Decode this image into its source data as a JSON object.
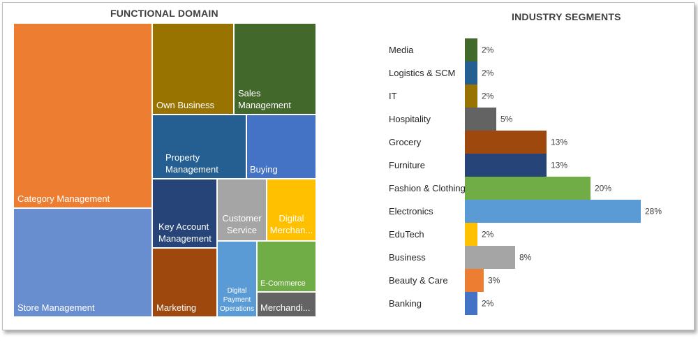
{
  "chart_data": [
    {
      "type": "treemap",
      "title": "FUNCTIONAL DOMAIN",
      "items": [
        {
          "name": "Category Management",
          "color": "#ED7D31"
        },
        {
          "name": "Store Management",
          "color": "#698ED0"
        },
        {
          "name": "Own Business",
          "color": "#997300"
        },
        {
          "name": "Sales Management",
          "color": "#43682B"
        },
        {
          "name": "Property\nManagement",
          "color": "#255E91"
        },
        {
          "name": "Buying",
          "color": "#4472C4"
        },
        {
          "name": "Key Account\nManagement",
          "color": "#264478"
        },
        {
          "name": "Customer\nService",
          "color": "#A5A5A5"
        },
        {
          "name": "Digital\nMerchan...",
          "color": "#FFC000"
        },
        {
          "name": "Marketing",
          "color": "#9E480E"
        },
        {
          "name": "Digital\nPayment\nOperations",
          "color": "#5B9BD5"
        },
        {
          "name": "E-Commerce",
          "color": "#70AD47"
        },
        {
          "name": "Merchandi...",
          "color": "#636363"
        }
      ]
    },
    {
      "type": "bar",
      "orientation": "horizontal",
      "title": "INDUSTRY SEGMENTS",
      "categories": [
        "Media",
        "Logistics & SCM",
        "IT",
        "Hospitality",
        "Grocery",
        "Furniture",
        "Fashion & Clothing",
        "Electronics",
        "EduTech",
        "Business",
        "Beauty & Care",
        "Banking"
      ],
      "values": [
        2,
        2,
        2,
        5,
        13,
        13,
        20,
        28,
        2,
        8,
        3,
        2
      ],
      "value_labels": [
        "2%",
        "2%",
        "2%",
        "5%",
        "13%",
        "13%",
        "20%",
        "28%",
        "2%",
        "8%",
        "3%",
        "2%"
      ],
      "colors": [
        "#43682B",
        "#255E91",
        "#997300",
        "#636363",
        "#9E480E",
        "#264478",
        "#70AD47",
        "#5B9BD5",
        "#FFC000",
        "#A5A5A5",
        "#ED7D31",
        "#4472C4"
      ],
      "unit": "%",
      "xlim": [
        0,
        28
      ],
      "grid": false,
      "legend": "none"
    }
  ]
}
